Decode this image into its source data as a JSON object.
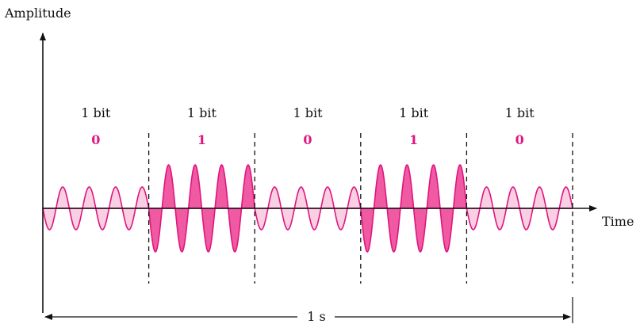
{
  "diagram": {
    "y_axis_label": "Amplitude",
    "x_axis_label": "Time",
    "duration_label": "1 s",
    "colors": {
      "wave_stroke": "#e0157e",
      "low_fill": "#f9cfe3",
      "high_fill": "#ef5aa3",
      "bit_value": "#e0157e",
      "axis": "#111111"
    },
    "segments": [
      {
        "label": "1 bit",
        "bit": "0",
        "amplitude": "low"
      },
      {
        "label": "1 bit",
        "bit": "1",
        "amplitude": "high"
      },
      {
        "label": "1 bit",
        "bit": "0",
        "amplitude": "low"
      },
      {
        "label": "1 bit",
        "bit": "1",
        "amplitude": "high"
      },
      {
        "label": "1 bit",
        "bit": "0",
        "amplitude": "low"
      }
    ],
    "cycles_per_bit": 4
  }
}
